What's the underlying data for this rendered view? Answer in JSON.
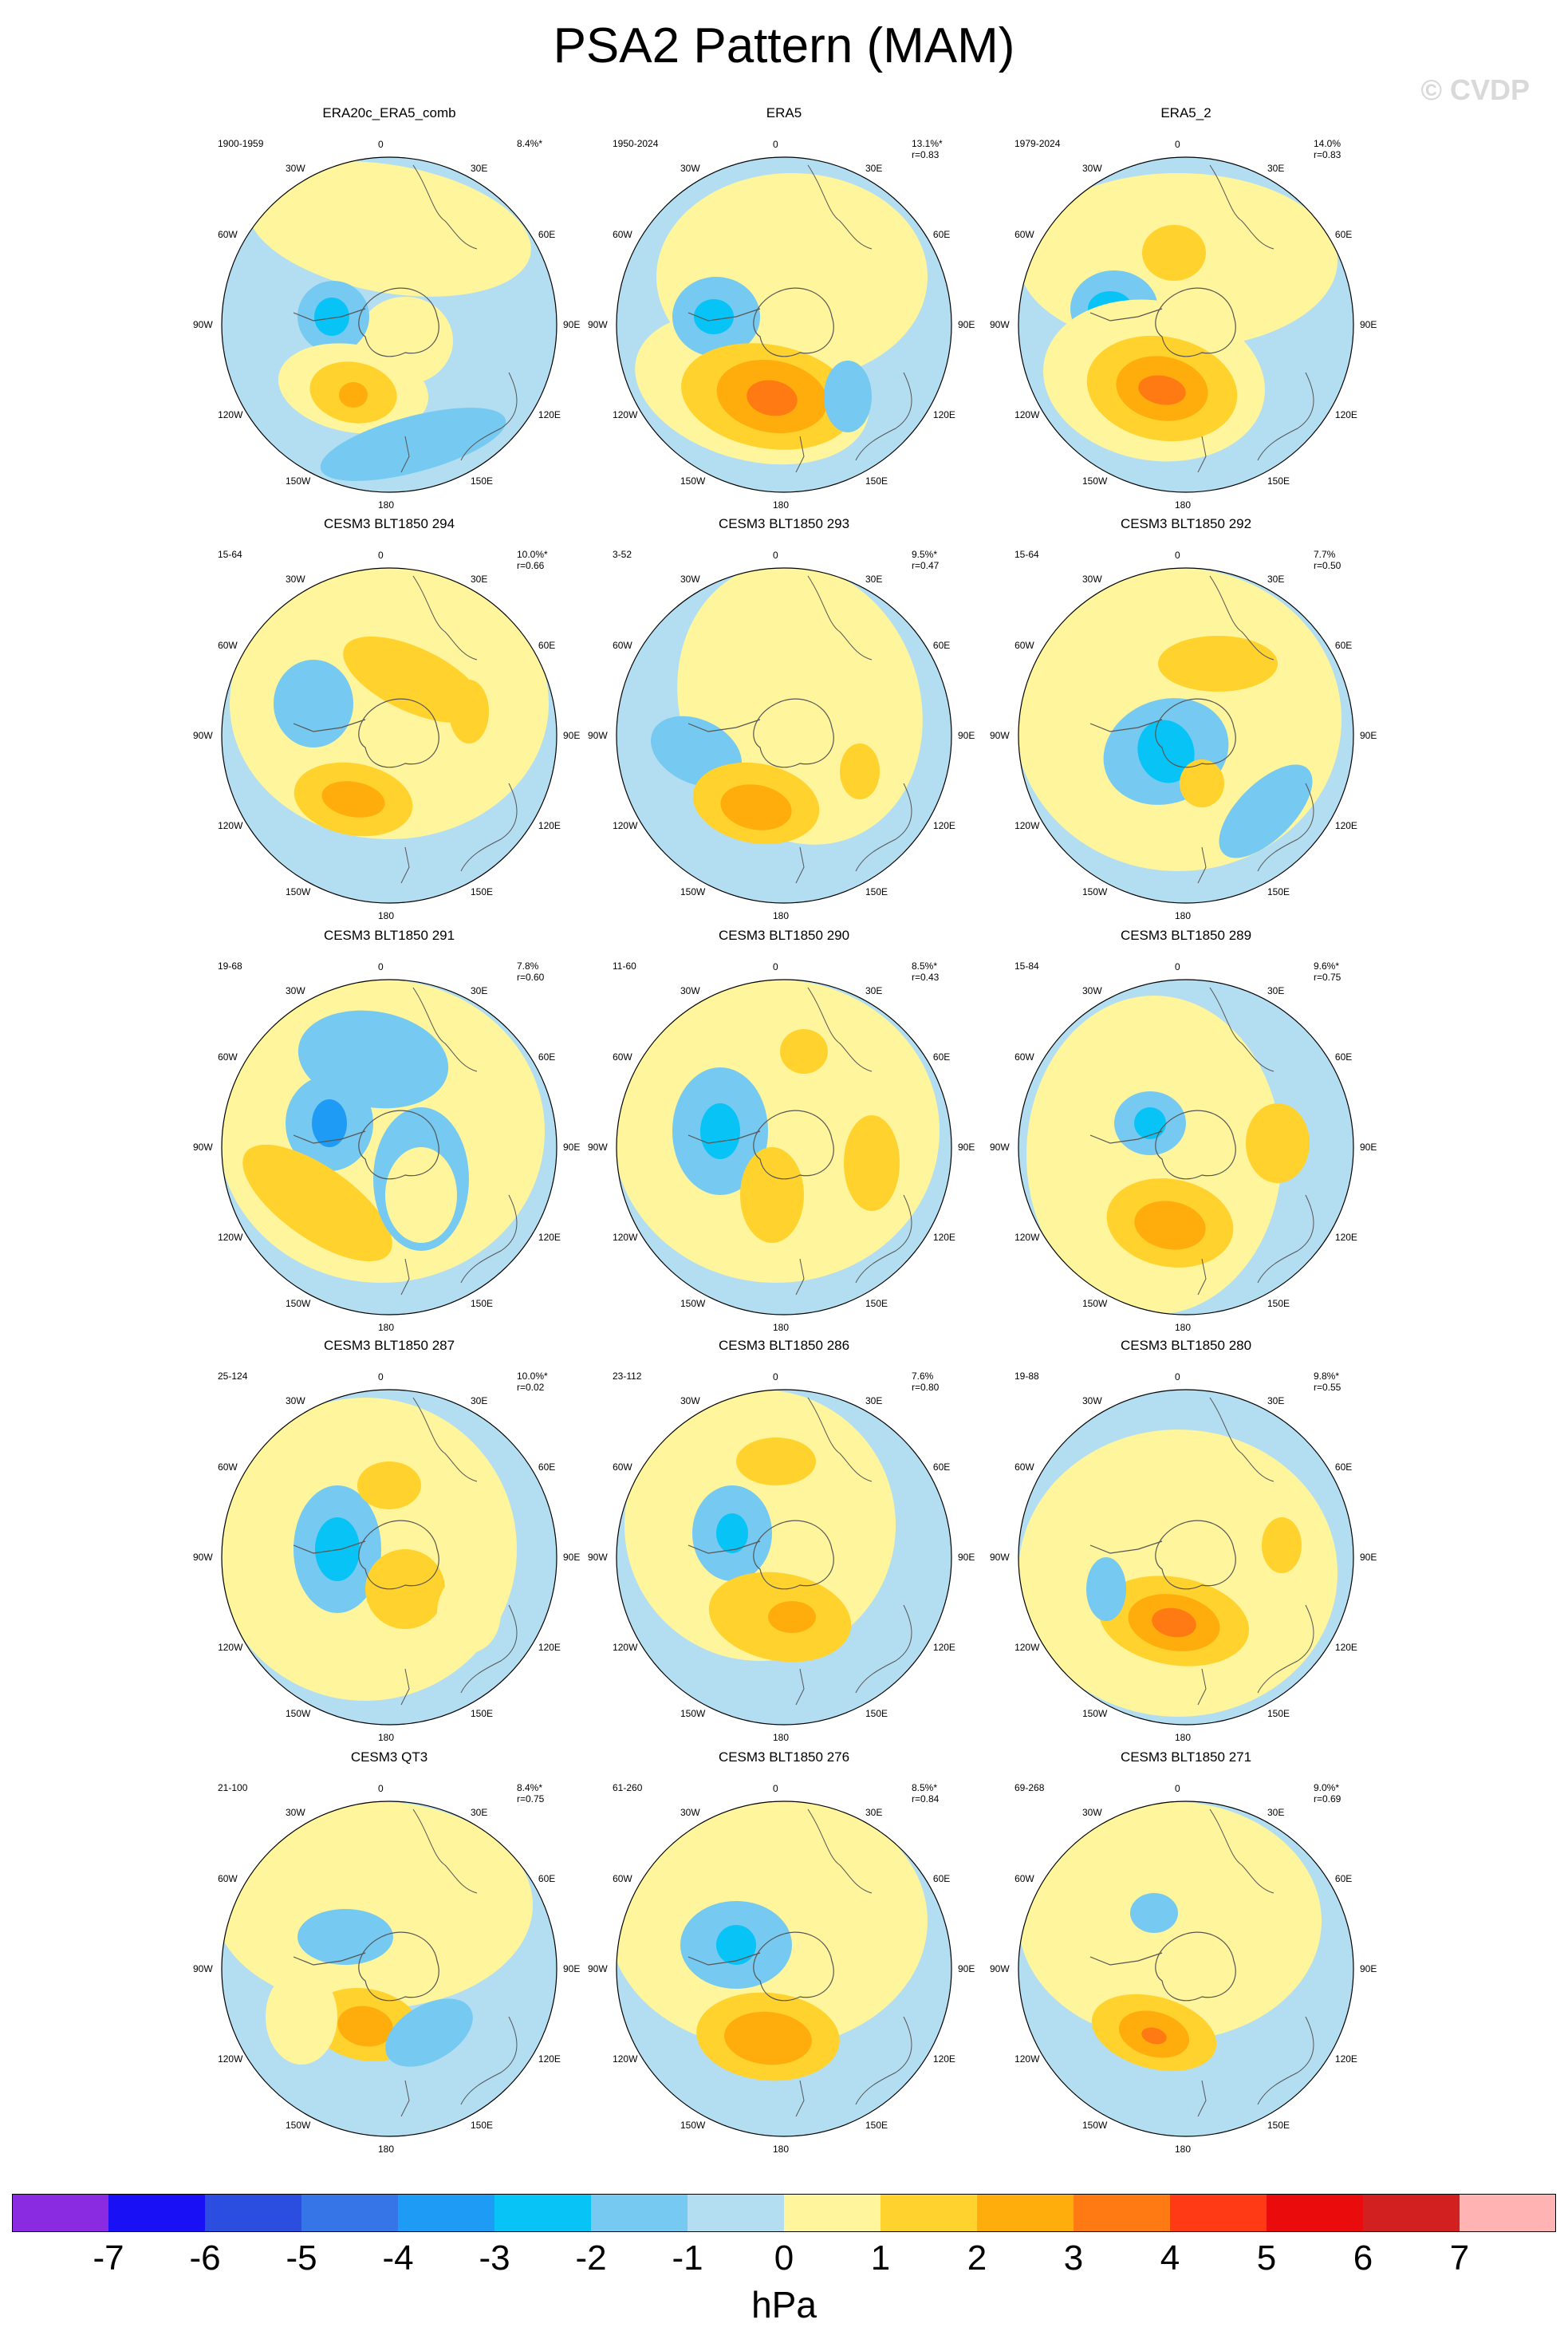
{
  "title": "PSA2 Pattern (MAM)",
  "copyright": "© CVDP",
  "lon_labels": [
    "0",
    "30E",
    "60E",
    "90E",
    "120E",
    "150E",
    "180",
    "150W",
    "120W",
    "90W",
    "60W",
    "30W"
  ],
  "panels": [
    {
      "title": "ERA20c_ERA5_comb",
      "years": "1900-1959",
      "pct": "8.4%*",
      "r": ""
    },
    {
      "title": "ERA5",
      "years": "1950-2024",
      "pct": "13.1%*",
      "r": "r=0.83"
    },
    {
      "title": "ERA5_2",
      "years": "1979-2024",
      "pct": "14.0%",
      "r": "r=0.83"
    },
    {
      "title": "CESM3 BLT1850 294",
      "years": "15-64",
      "pct": "10.0%*",
      "r": "r=0.66"
    },
    {
      "title": "CESM3 BLT1850 293",
      "years": "3-52",
      "pct": "9.5%*",
      "r": "r=0.47"
    },
    {
      "title": "CESM3 BLT1850 292",
      "years": "15-64",
      "pct": "7.7%",
      "r": "r=0.50"
    },
    {
      "title": "CESM3 BLT1850 291",
      "years": "19-68",
      "pct": "7.8%",
      "r": "r=0.60"
    },
    {
      "title": "CESM3 BLT1850 290",
      "years": "11-60",
      "pct": "8.5%*",
      "r": "r=0.43"
    },
    {
      "title": "CESM3 BLT1850 289",
      "years": "15-84",
      "pct": "9.6%*",
      "r": "r=0.75"
    },
    {
      "title": "CESM3 BLT1850 287",
      "years": "25-124",
      "pct": "10.0%*",
      "r": "r=0.02"
    },
    {
      "title": "CESM3 BLT1850 286",
      "years": "23-112",
      "pct": "7.6%",
      "r": "r=0.80"
    },
    {
      "title": "CESM3 BLT1850 280",
      "years": "19-88",
      "pct": "9.8%*",
      "r": "r=0.55"
    },
    {
      "title": "CESM3 QT3",
      "years": "21-100",
      "pct": "8.4%*",
      "r": "r=0.75"
    },
    {
      "title": "CESM3 BLT1850 276",
      "years": "61-260",
      "pct": "8.5%*",
      "r": "r=0.84"
    },
    {
      "title": "CESM3 BLT1850 271",
      "years": "69-268",
      "pct": "9.0%*",
      "r": "r=0.69"
    }
  ],
  "colorbar": {
    "colors": [
      "#8a2be2",
      "#1a10f5",
      "#2b4ee0",
      "#3575e8",
      "#1e9bf5",
      "#08c3f5",
      "#76c9f0",
      "#b3def2",
      "#fff59c",
      "#ffd22e",
      "#ffad0d",
      "#ff7a12",
      "#ff3a14",
      "#ea0c0c",
      "#d21f1f",
      "#ffb3b3"
    ],
    "labels": [
      "-7",
      "-6",
      "-5",
      "-4",
      "-3",
      "-2",
      "-1",
      "0",
      "1",
      "2",
      "3",
      "4",
      "5",
      "6",
      "7"
    ],
    "unit": "hPa"
  }
}
